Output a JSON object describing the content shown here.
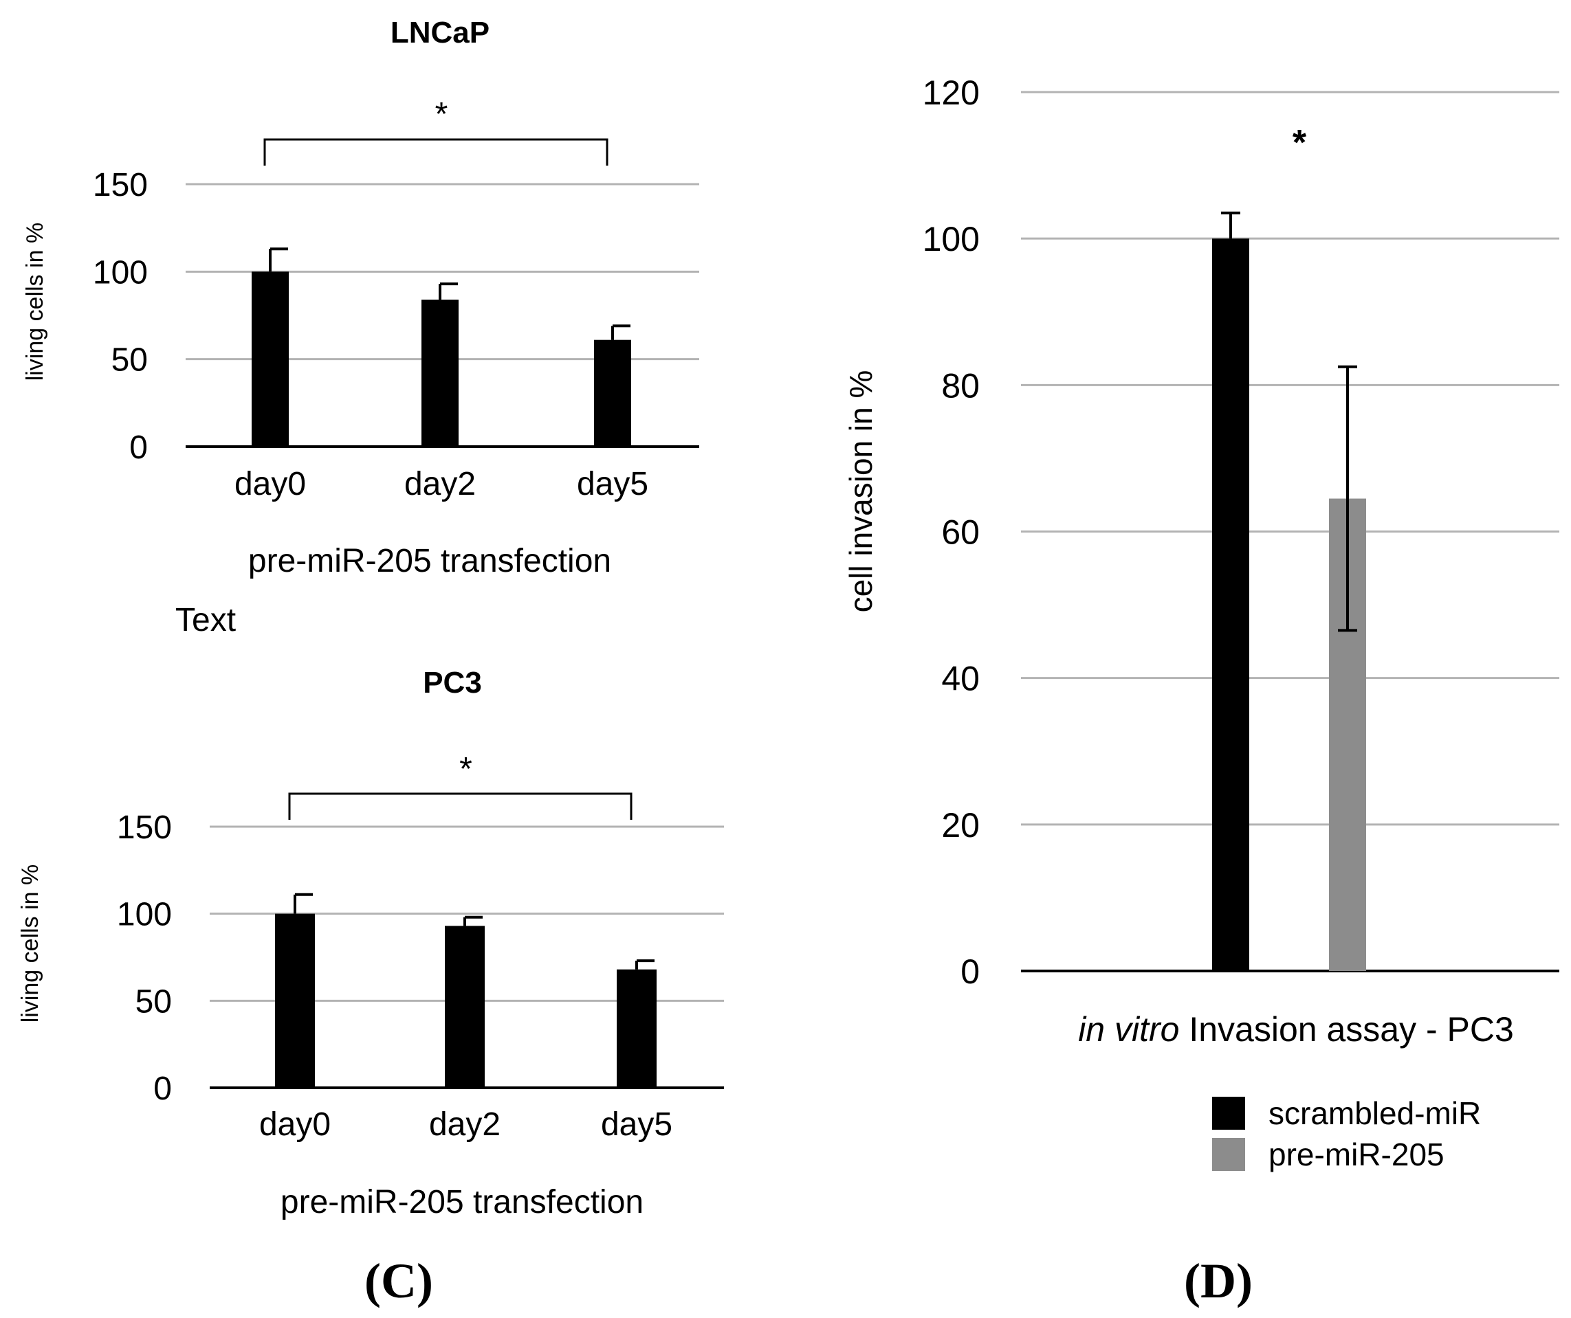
{
  "figure": {
    "stray_label": "Text"
  },
  "chart_data": [
    {
      "id": "lncap",
      "type": "bar",
      "title": "LNCaP",
      "categories": [
        "day0",
        "day2",
        "day5"
      ],
      "values": [
        100,
        84,
        61
      ],
      "errors": [
        13,
        9,
        8
      ],
      "xlabel": "pre-miR-205 transfection",
      "ylabel": "living cells in %",
      "ylim": [
        0,
        150
      ],
      "yticks": [
        0,
        50,
        100,
        150
      ],
      "grid": true,
      "significance": {
        "from": "day0",
        "to": "day5",
        "label": "*"
      },
      "bar_color": "#000000"
    },
    {
      "id": "pc3",
      "type": "bar",
      "title": "PC3",
      "categories": [
        "day0",
        "day2",
        "day5"
      ],
      "values": [
        100,
        93,
        68
      ],
      "errors": [
        11,
        5,
        5
      ],
      "xlabel": "pre-miR-205 transfection",
      "ylabel": "living cells in %",
      "ylim": [
        0,
        150
      ],
      "yticks": [
        0,
        50,
        100,
        150
      ],
      "grid": true,
      "significance": {
        "from": "day0",
        "to": "day5",
        "label": "*"
      },
      "bar_color": "#000000"
    },
    {
      "id": "invasion",
      "type": "bar",
      "title": "",
      "xlabel_italic": "in vitro",
      "xlabel_rest": " Invasion assay - PC3",
      "ylabel": "cell invasion in %",
      "ylim": [
        0,
        120
      ],
      "yticks": [
        0,
        20,
        40,
        60,
        80,
        100,
        120
      ],
      "grid": true,
      "series": [
        {
          "name": "scrambled-miR",
          "value": 100,
          "error": 3.5,
          "color": "#000000"
        },
        {
          "name": "pre-miR-205",
          "value": 64.5,
          "error": 18,
          "color": "#8c8c8c"
        }
      ],
      "significance_label": "*",
      "legend": "bottom-right"
    }
  ],
  "panel_labels": [
    "(C)",
    "(D)"
  ]
}
